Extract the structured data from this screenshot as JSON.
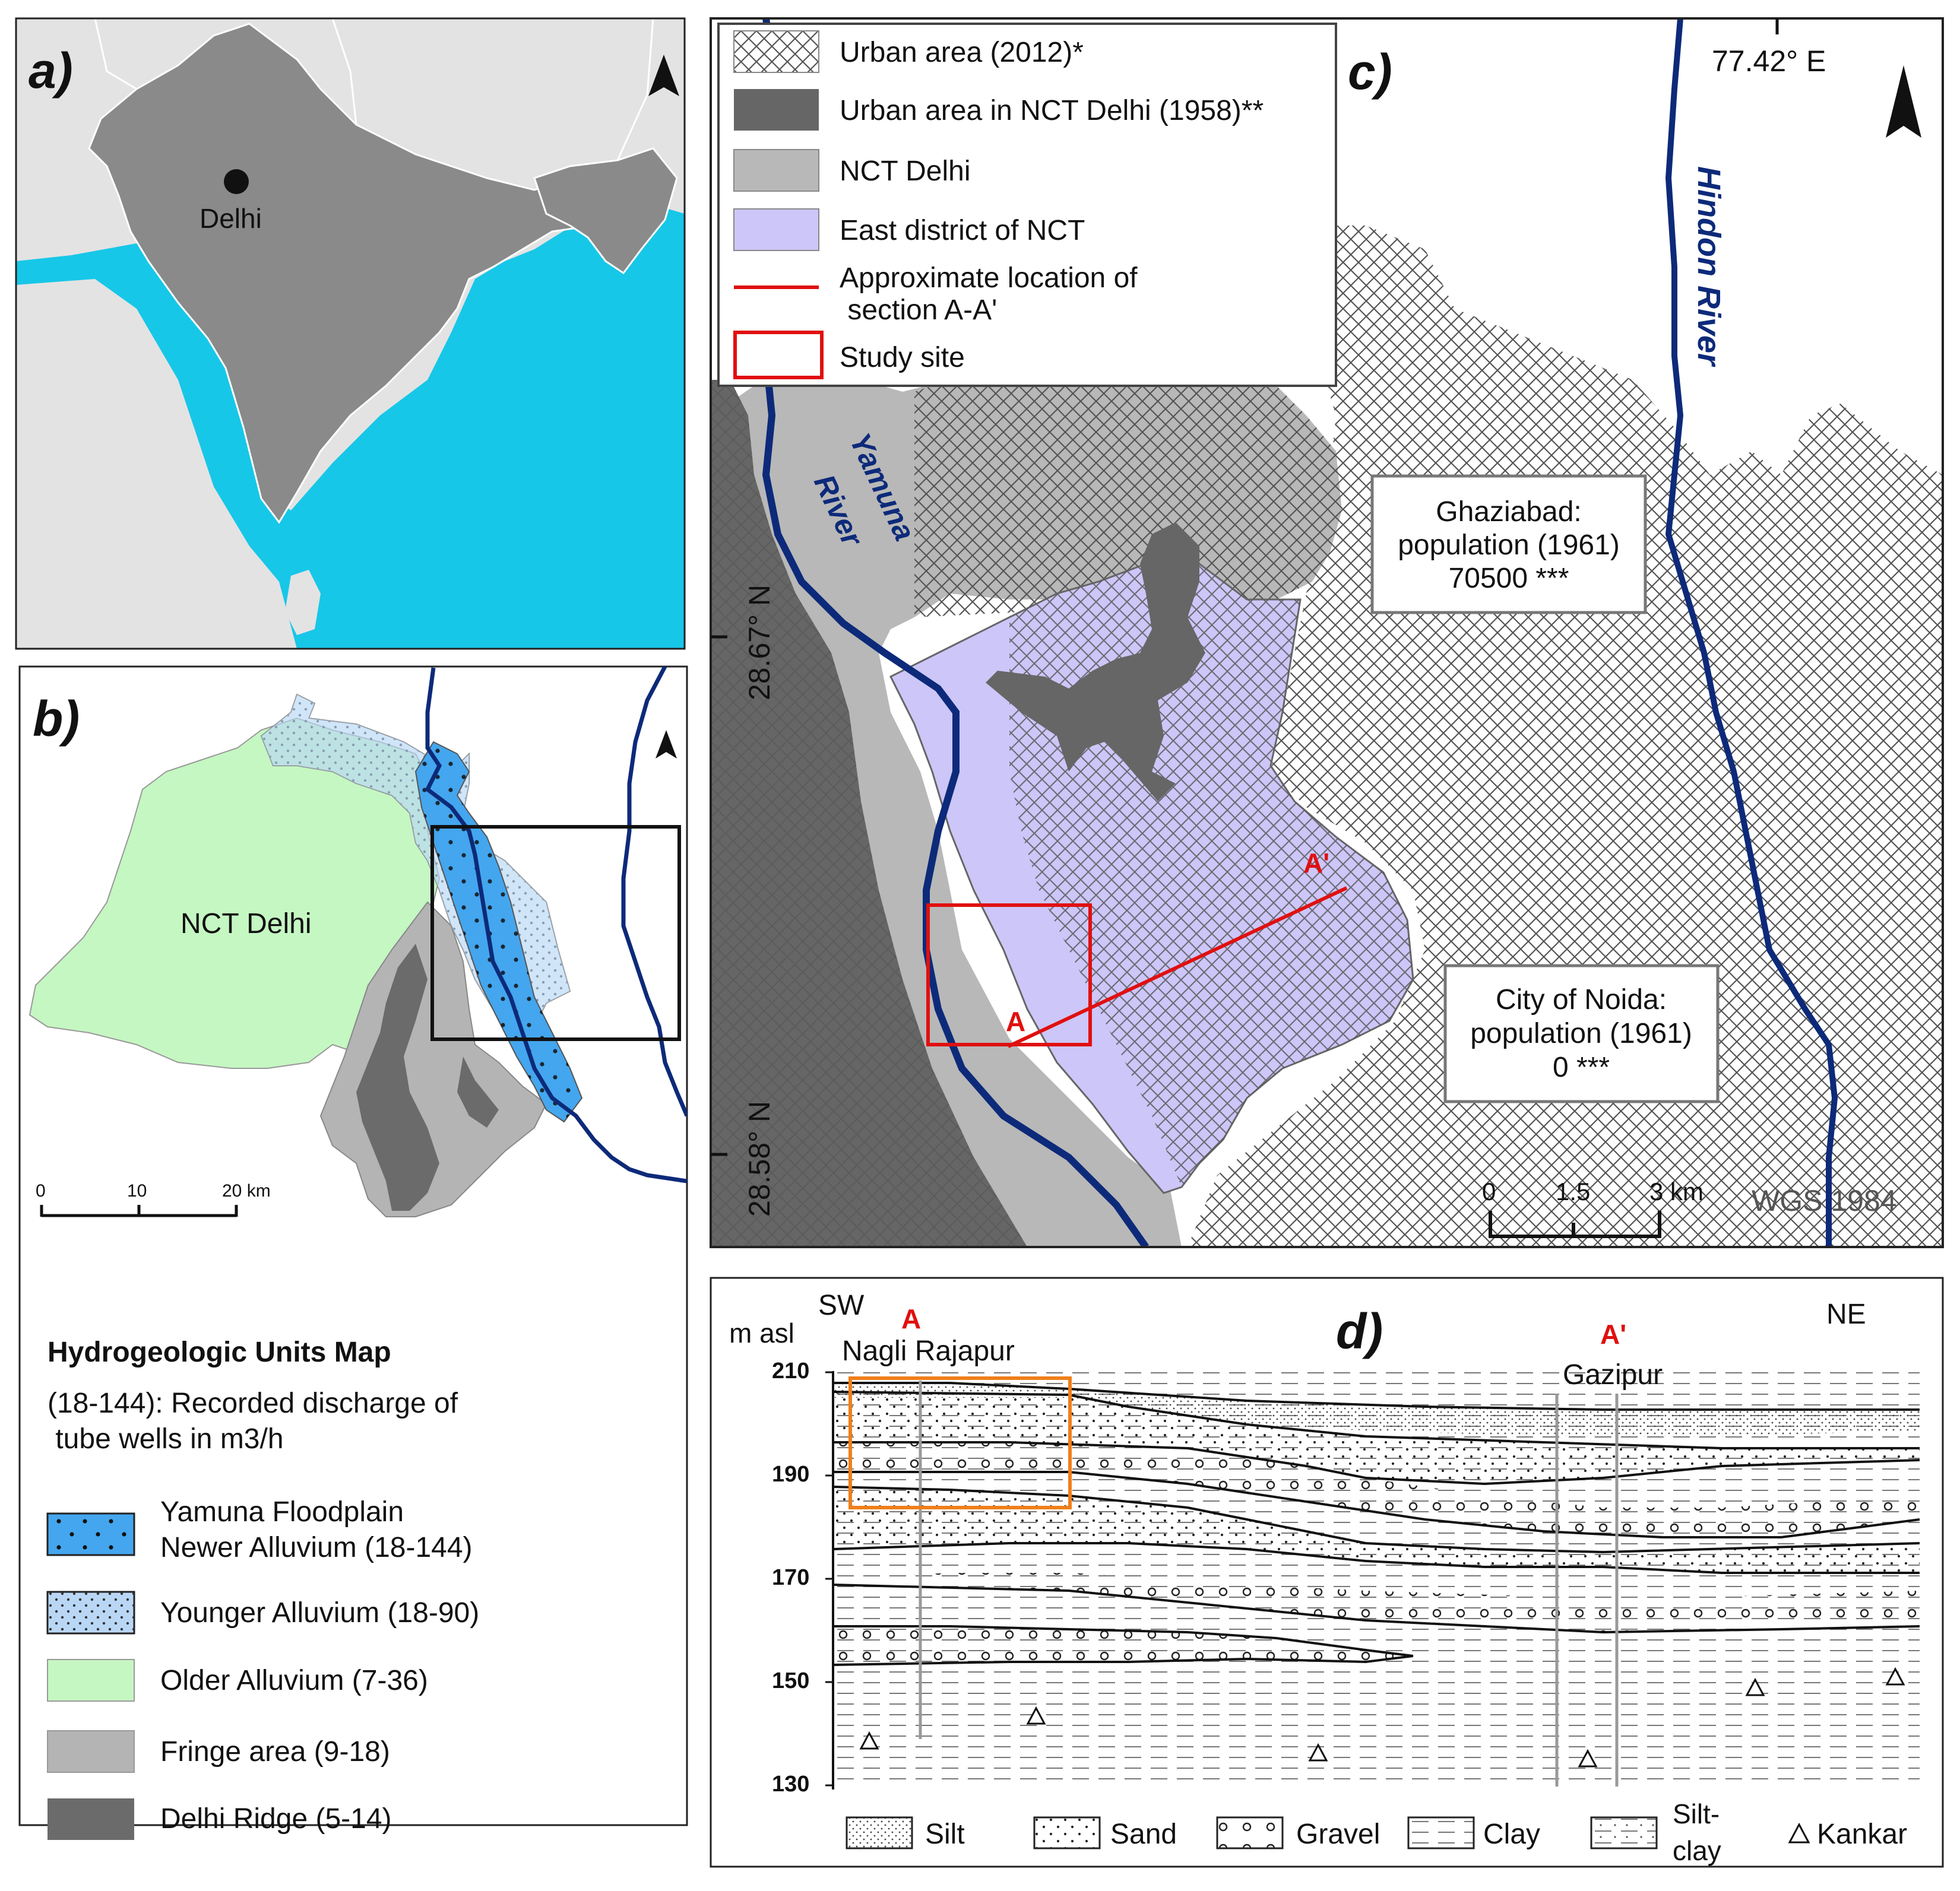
{
  "panel_a": {
    "label": "a)",
    "city": "Delhi"
  },
  "panel_b": {
    "label": "b)",
    "region_label": "NCT Delhi",
    "scale": {
      "t0": "0",
      "t1": "10",
      "t2": "20 km"
    },
    "legend_title": "Hydrogeologic Units Map",
    "legend_note": [
      "(18-144): Recorded discharge of",
      " tube wells in m3/h"
    ],
    "units": [
      {
        "lines": [
          "Yamuna Floodplain",
          "Newer Alluvium (18-144)"
        ],
        "color": "#44a6ee"
      },
      {
        "lines": [
          "Younger Alluvium (18-90)"
        ],
        "color": "#b9d7f5"
      },
      {
        "lines": [
          "Older Alluvium (7-36)"
        ],
        "color": "#c5f7c2"
      },
      {
        "lines": [
          "Fringe area (9-18)"
        ],
        "color": "#b4b4b4"
      },
      {
        "lines": [
          "Delhi Ridge (5-14)"
        ],
        "color": "#6b6b6b"
      }
    ]
  },
  "panel_c": {
    "label": "c)",
    "legend": [
      "Urban area (2012)*",
      "Urban area in NCT Delhi (1958)**",
      "NCT Delhi",
      "East district of NCT",
      "Approximate location of",
      " section A-A'",
      "Study site"
    ],
    "lon_label": "77.42° E",
    "lat_labels": [
      "28.67° N",
      "28.58° N"
    ],
    "rivers": [
      "Yamuna",
      "River",
      "Hindon River"
    ],
    "ghaziabad": [
      "Ghaziabad:",
      "population (1961)",
      "70500 ***"
    ],
    "noida": [
      "City of Noida:",
      "population (1961)",
      "0 ***"
    ],
    "section_a": "A",
    "section_a_prime": "A'",
    "scale": {
      "t0": "0",
      "t1": "1.5",
      "t2": "3 km"
    },
    "datum": "WGS 1984",
    "colors": {
      "east": "#cdc6f8",
      "nct": "#b8b8b8",
      "ridge": "#666666",
      "river": "#0d2a7a",
      "section": "#e01010"
    }
  },
  "panel_d": {
    "label": "d)",
    "sw": "SW",
    "ne": "NE",
    "ylabel": "m asl",
    "a": "A",
    "a_prime": "A'",
    "site_a": "Nagli Rajapur",
    "site_b": "Gazipur",
    "yticks": [
      "210",
      "190",
      "170",
      "150",
      "130"
    ],
    "legend": [
      "Silt",
      "Sand",
      "Gravel",
      "Clay",
      "Silt-",
      "clay",
      "Kankar"
    ]
  }
}
